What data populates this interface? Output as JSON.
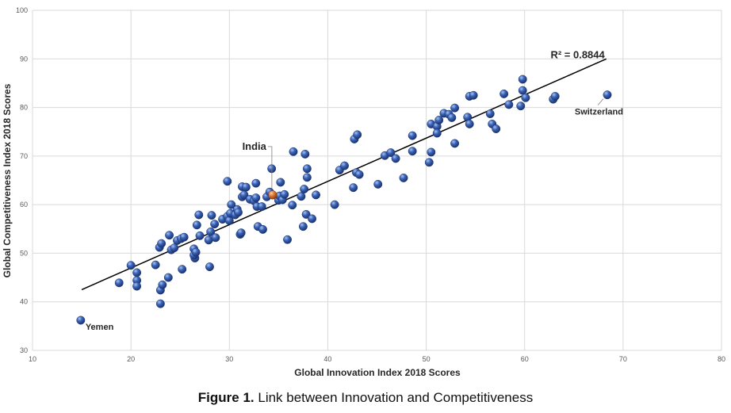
{
  "chart_data": {
    "type": "scatter",
    "title": "",
    "xlabel": "Global Innovation Index 2018 Scores",
    "ylabel": "Global Competitiveness Index 2018 Scores",
    "xlim": [
      10,
      80
    ],
    "ylim": [
      30,
      100
    ],
    "xticks": [
      10,
      20,
      30,
      40,
      50,
      60,
      70,
      80
    ],
    "yticks": [
      30,
      40,
      50,
      60,
      70,
      80,
      90,
      100
    ],
    "grid": true,
    "trendline": {
      "x": [
        15,
        68.3
      ],
      "y": [
        42.5,
        90.0
      ],
      "label": "R² = 0.8844"
    },
    "highlight": {
      "name": "India",
      "x": 34.4,
      "y": 62.0,
      "color": "#E07B39"
    },
    "annotations": [
      {
        "text": "India",
        "x": 34.3,
        "y": 67.4
      },
      {
        "text": "Switzerland",
        "x": 68.4,
        "y": 82.6
      },
      {
        "text": "Yemen",
        "x": 14.9,
        "y": 36.2
      }
    ],
    "point_color": "#3A63B8",
    "points": [
      [
        14.9,
        36.2
      ],
      [
        18.8,
        43.9
      ],
      [
        20.0,
        47.5
      ],
      [
        20.6,
        46.0
      ],
      [
        20.6,
        44.4
      ],
      [
        20.6,
        43.2
      ],
      [
        22.5,
        47.6
      ],
      [
        22.9,
        51.2
      ],
      [
        23.1,
        52.0
      ],
      [
        23.0,
        42.4
      ],
      [
        23.2,
        43.5
      ],
      [
        23.0,
        39.6
      ],
      [
        23.8,
        45.0
      ],
      [
        23.9,
        53.7
      ],
      [
        24.1,
        50.7
      ],
      [
        24.4,
        51.1
      ],
      [
        24.7,
        52.6
      ],
      [
        25.1,
        53.0
      ],
      [
        25.4,
        53.3
      ],
      [
        25.2,
        46.7
      ],
      [
        26.4,
        50.9
      ],
      [
        26.5,
        49.0
      ],
      [
        26.4,
        49.6
      ],
      [
        26.6,
        50.2
      ],
      [
        26.7,
        55.8
      ],
      [
        26.9,
        57.9
      ],
      [
        27.0,
        53.6
      ],
      [
        27.9,
        52.7
      ],
      [
        28.0,
        47.2
      ],
      [
        28.1,
        54.4
      ],
      [
        28.2,
        57.8
      ],
      [
        28.6,
        53.2
      ],
      [
        28.5,
        56.0
      ],
      [
        29.3,
        57.0
      ],
      [
        29.8,
        64.8
      ],
      [
        29.8,
        57.6
      ],
      [
        30.0,
        56.7
      ],
      [
        30.1,
        58.2
      ],
      [
        30.2,
        60.0
      ],
      [
        30.6,
        57.9
      ],
      [
        30.8,
        59.0
      ],
      [
        30.9,
        58.4
      ],
      [
        31.1,
        53.9
      ],
      [
        31.2,
        54.2
      ],
      [
        31.3,
        61.6
      ],
      [
        31.3,
        63.7
      ],
      [
        31.5,
        62.0
      ],
      [
        31.7,
        63.6
      ],
      [
        32.1,
        61.1
      ],
      [
        32.5,
        60.8
      ],
      [
        32.7,
        61.4
      ],
      [
        32.8,
        59.6
      ],
      [
        32.7,
        64.4
      ],
      [
        32.9,
        55.5
      ],
      [
        33.4,
        54.9
      ],
      [
        33.3,
        59.6
      ],
      [
        33.8,
        61.6
      ],
      [
        34.1,
        62.6
      ],
      [
        34.3,
        67.4
      ],
      [
        35.0,
        60.9
      ],
      [
        35.1,
        61.8
      ],
      [
        35.2,
        64.6
      ],
      [
        35.4,
        61.0
      ],
      [
        35.6,
        62.1
      ],
      [
        35.9,
        52.8
      ],
      [
        36.4,
        59.9
      ],
      [
        36.5,
        70.9
      ],
      [
        37.3,
        61.7
      ],
      [
        37.5,
        55.5
      ],
      [
        37.6,
        63.2
      ],
      [
        37.7,
        70.4
      ],
      [
        37.8,
        58.0
      ],
      [
        37.9,
        67.4
      ],
      [
        37.9,
        65.6
      ],
      [
        38.4,
        57.1
      ],
      [
        38.8,
        62.0
      ],
      [
        40.7,
        60.0
      ],
      [
        41.2,
        67.1
      ],
      [
        41.7,
        68.0
      ],
      [
        42.6,
        63.5
      ],
      [
        42.7,
        73.5
      ],
      [
        42.9,
        66.6
      ],
      [
        43.0,
        74.4
      ],
      [
        43.2,
        66.2
      ],
      [
        45.1,
        64.2
      ],
      [
        45.8,
        70.1
      ],
      [
        46.4,
        70.7
      ],
      [
        46.9,
        69.5
      ],
      [
        47.7,
        65.5
      ],
      [
        48.6,
        71.0
      ],
      [
        48.6,
        74.2
      ],
      [
        50.3,
        68.7
      ],
      [
        50.5,
        76.6
      ],
      [
        50.5,
        70.8
      ],
      [
        51.1,
        76.1
      ],
      [
        51.1,
        74.7
      ],
      [
        51.3,
        77.4
      ],
      [
        51.8,
        78.8
      ],
      [
        52.3,
        78.6
      ],
      [
        52.6,
        77.9
      ],
      [
        52.9,
        79.9
      ],
      [
        52.9,
        72.6
      ],
      [
        54.2,
        78.0
      ],
      [
        54.4,
        82.3
      ],
      [
        54.4,
        76.6
      ],
      [
        54.8,
        82.5
      ],
      [
        56.5,
        78.7
      ],
      [
        56.7,
        76.6
      ],
      [
        57.1,
        75.6
      ],
      [
        57.9,
        82.8
      ],
      [
        58.4,
        80.6
      ],
      [
        59.6,
        80.3
      ],
      [
        59.8,
        85.8
      ],
      [
        59.8,
        83.5
      ],
      [
        60.1,
        82.0
      ],
      [
        62.9,
        81.7
      ],
      [
        63.1,
        82.3
      ],
      [
        68.4,
        82.6
      ]
    ]
  },
  "caption": {
    "label": "Figure 1.",
    "text": " Link between Innovation and Competitiveness"
  }
}
